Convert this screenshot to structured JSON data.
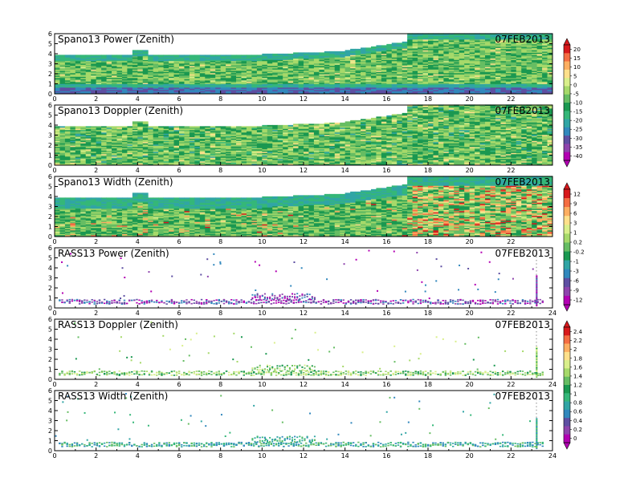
{
  "chart_data": [
    {
      "type": "heatmap",
      "title": "Spano13 Power (Zenith)",
      "date": "07FEB2013",
      "x_ticks": [
        "0",
        "2",
        "4",
        "6",
        "8",
        "10",
        "12",
        "14",
        "16",
        "18",
        "20",
        "22"
      ],
      "y_ticks": [
        "0",
        "1",
        "2",
        "3",
        "4",
        "5",
        "6"
      ],
      "xlim": [
        0,
        24
      ],
      "ylim": [
        0,
        6
      ],
      "kind": "power",
      "colorbar": {
        "ticks": [
          "20",
          "15",
          "10",
          "5",
          "0",
          "-5",
          "-10",
          "-15",
          "-20",
          "-25",
          "-30",
          "-35",
          "-40"
        ],
        "colors": [
          "#d7191c",
          "#f46d43",
          "#fdae61",
          "#fee08b",
          "#d9ef8b",
          "#a6d96a",
          "#66bd63",
          "#1a9850",
          "#35b779",
          "#31a5a5",
          "#3288bd",
          "#5e4fa2",
          "#8e44ad",
          "#b300b3"
        ]
      }
    },
    {
      "type": "heatmap",
      "title": "Spano13 Doppler (Zenith)",
      "date": "07FEB2013",
      "x_ticks": [
        "0",
        "2",
        "4",
        "6",
        "8",
        "10",
        "12",
        "14",
        "16",
        "18",
        "20",
        "22"
      ],
      "y_ticks": [
        "0",
        "1",
        "2",
        "3",
        "4",
        "5",
        "6"
      ],
      "xlim": [
        0,
        24
      ],
      "ylim": [
        0,
        6
      ],
      "kind": "doppler"
    },
    {
      "type": "heatmap",
      "title": "Spano13 Width (Zenith)",
      "date": "07FEB2013",
      "x_ticks": [
        "0",
        "2",
        "4",
        "6",
        "8",
        "10",
        "12",
        "14",
        "16",
        "18",
        "20",
        "22"
      ],
      "y_ticks": [
        "0",
        "1",
        "2",
        "3",
        "4",
        "5",
        "6"
      ],
      "xlim": [
        0,
        24
      ],
      "ylim": [
        0,
        6
      ],
      "kind": "width",
      "colorbar": {
        "ticks": [
          "12",
          "9",
          "6",
          "3",
          "1",
          "0.2",
          "-0.2",
          "-1",
          "-3",
          "-6",
          "-9",
          "-12"
        ],
        "colors": [
          "#d7191c",
          "#f46d43",
          "#fdae61",
          "#fee08b",
          "#d9ef8b",
          "#a6d96a",
          "#66bd63",
          "#1a9850",
          "#31a5a5",
          "#3288bd",
          "#5e4fa2",
          "#8e44ad",
          "#b300b3"
        ]
      }
    },
    {
      "type": "scatter",
      "title": "RASS13 Power (Zenith)",
      "date": "07FEB2013",
      "x_ticks": [
        "0",
        "2",
        "4",
        "6",
        "8",
        "10",
        "12",
        "14",
        "16",
        "18",
        "20",
        "22",
        "24"
      ],
      "y_ticks": [
        "0",
        "1",
        "2",
        "3",
        "4",
        "5",
        "6"
      ],
      "xlim": [
        0,
        24
      ],
      "ylim": [
        0,
        6
      ],
      "kind": "rass-power"
    },
    {
      "type": "scatter",
      "title": "RASS13 Doppler (Zenith)",
      "date": "07FEB2013",
      "x_ticks": [
        "0",
        "2",
        "4",
        "6",
        "8",
        "10",
        "12",
        "14",
        "16",
        "18",
        "20",
        "22",
        "24"
      ],
      "y_ticks": [
        "0",
        "1",
        "2",
        "3",
        "4",
        "5",
        "6"
      ],
      "xlim": [
        0,
        24
      ],
      "ylim": [
        0,
        6
      ],
      "kind": "rass-doppler",
      "colorbar": {
        "ticks": [
          "2.4",
          "2.2",
          "2",
          "1.8",
          "1.6",
          "1.4",
          "1.2",
          "1",
          "0.8",
          "0.6",
          "0.4",
          "0.2",
          "0"
        ],
        "colors": [
          "#d7191c",
          "#f46d43",
          "#fdae61",
          "#fee08b",
          "#d9ef8b",
          "#a6d96a",
          "#66bd63",
          "#1a9850",
          "#35b779",
          "#31a5a5",
          "#3288bd",
          "#5e4fa2",
          "#8e44ad",
          "#b300b3"
        ]
      }
    },
    {
      "type": "scatter",
      "title": "RASS13 Width (Zenith)",
      "date": "07FEB2013",
      "x_ticks": [
        "0",
        "2",
        "4",
        "6",
        "8",
        "10",
        "12",
        "14",
        "16",
        "18",
        "20",
        "22",
        "24"
      ],
      "y_ticks": [
        "0",
        "1",
        "2",
        "3",
        "4",
        "5",
        "6"
      ],
      "xlim": [
        0,
        24
      ],
      "ylim": [
        0,
        6
      ],
      "kind": "rass-width"
    }
  ]
}
